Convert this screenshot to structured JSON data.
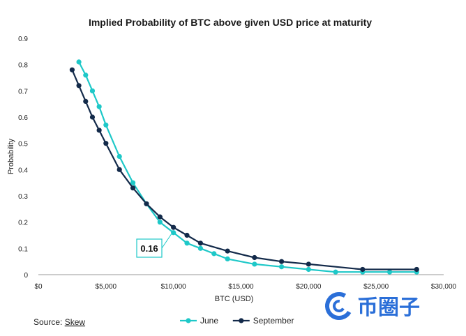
{
  "chart_data": {
    "type": "line",
    "title": "Implied Probability of BTC above given USD price at maturity",
    "xlabel": "BTC (USD)",
    "ylabel": "Probability",
    "xlim": [
      0,
      30000
    ],
    "ylim": [
      0,
      0.9
    ],
    "x_ticks": [
      "$0",
      "$5,000",
      "$10,000",
      "$15,000",
      "$20,000",
      "$25,000",
      "$30,000"
    ],
    "y_ticks": [
      "0",
      "0.1",
      "0.2",
      "0.3",
      "0.4",
      "0.5",
      "0.6",
      "0.7",
      "0.8",
      "0.9"
    ],
    "grid": false,
    "legend": "bottom-center",
    "series": [
      {
        "name": "June",
        "color": "#1ec8c8",
        "x": [
          3000,
          3500,
          4000,
          4500,
          5000,
          6000,
          7000,
          8000,
          9000,
          10000,
          11000,
          12000,
          13000,
          14000,
          16000,
          18000,
          20000,
          22000,
          24000,
          26000,
          28000
        ],
        "y": [
          0.81,
          0.76,
          0.7,
          0.64,
          0.57,
          0.45,
          0.35,
          0.27,
          0.2,
          0.16,
          0.12,
          0.1,
          0.08,
          0.06,
          0.04,
          0.03,
          0.02,
          0.01,
          0.01,
          0.01,
          0.01
        ]
      },
      {
        "name": "September",
        "color": "#132a4a",
        "x": [
          2500,
          3000,
          3500,
          4000,
          4500,
          5000,
          6000,
          7000,
          8000,
          9000,
          10000,
          11000,
          12000,
          14000,
          16000,
          18000,
          20000,
          24000,
          28000
        ],
        "y": [
          0.78,
          0.72,
          0.66,
          0.6,
          0.55,
          0.5,
          0.4,
          0.33,
          0.27,
          0.22,
          0.18,
          0.15,
          0.12,
          0.09,
          0.065,
          0.05,
          0.04,
          0.02,
          0.02
        ]
      }
    ],
    "annotation": {
      "text": "0.16",
      "x": 10000,
      "y": 0.16
    },
    "source_label": "Source: ",
    "source_link": "Skew"
  },
  "watermark": {
    "text": "币圈子",
    "icon": "coin-c-logo-icon",
    "color": "#2b6fd8"
  }
}
